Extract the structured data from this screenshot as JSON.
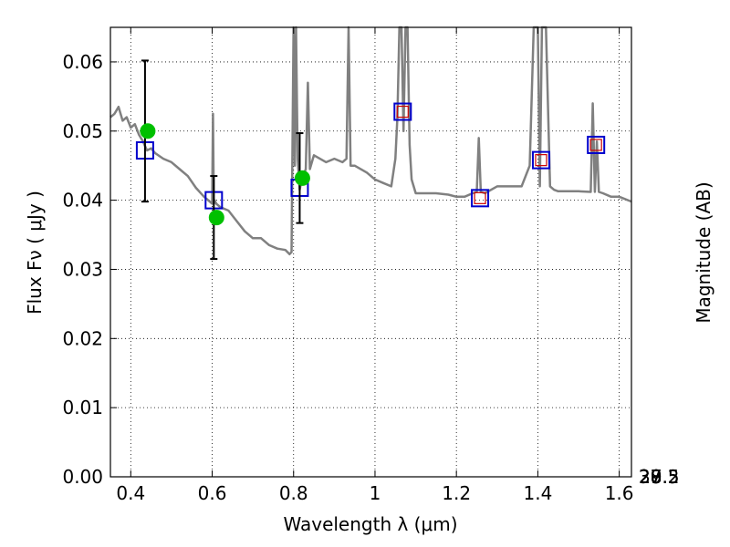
{
  "chart_data": {
    "type": "scatter",
    "title": "",
    "xlabel": "Wavelength  λ (μm)",
    "ylabel": "Flux  Fν  ( μJy )",
    "ylabel_right": "Magnitude (AB)",
    "xlim": [
      0.35,
      1.63
    ],
    "ylim": [
      0,
      0.065
    ],
    "grid": true,
    "x_ticks": [
      {
        "value": 0.4,
        "label": "0.4"
      },
      {
        "value": 0.6,
        "label": "0.6"
      },
      {
        "value": 0.8,
        "label": "0.8"
      },
      {
        "value": 1.0,
        "label": "1"
      },
      {
        "value": 1.2,
        "label": "1.2"
      },
      {
        "value": 1.4,
        "label": "1.4"
      },
      {
        "value": 1.6,
        "label": "1.6"
      }
    ],
    "y_ticks": [
      {
        "value": 0.0,
        "label": "0.00"
      },
      {
        "value": 0.01,
        "label": "0.01"
      },
      {
        "value": 0.02,
        "label": "0.02"
      },
      {
        "value": 0.03,
        "label": "0.03"
      },
      {
        "value": 0.04,
        "label": "0.04"
      },
      {
        "value": 0.05,
        "label": "0.05"
      },
      {
        "value": 0.06,
        "label": "0.06"
      }
    ],
    "right_ticks": [
      {
        "value": 27,
        "label": "27"
      },
      {
        "value": 27.2,
        "label": "27.2"
      },
      {
        "value": 27.5,
        "label": "27.5"
      },
      {
        "value": 28,
        "label": "28"
      },
      {
        "value": 28.5,
        "label": "28.5"
      },
      {
        "value": 29,
        "label": "29"
      },
      {
        "value": 30,
        "label": "30"
      }
    ],
    "series": [
      {
        "marker": "line",
        "color": "#808080",
        "x": [
          0.35,
          0.36,
          0.37,
          0.38,
          0.39,
          0.4,
          0.41,
          0.42,
          0.43,
          0.44,
          0.45,
          0.46,
          0.48,
          0.5,
          0.52,
          0.54,
          0.56,
          0.58,
          0.59,
          0.6,
          0.602,
          0.604,
          0.606,
          0.61,
          0.62,
          0.64,
          0.66,
          0.68,
          0.7,
          0.72,
          0.74,
          0.76,
          0.78,
          0.79,
          0.795,
          0.8,
          0.803,
          0.806,
          0.81,
          0.815,
          0.82,
          0.83,
          0.835,
          0.84,
          0.85,
          0.88,
          0.9,
          0.92,
          0.93,
          0.935,
          0.94,
          0.95,
          0.98,
          1.0,
          1.02,
          1.04,
          1.05,
          1.055,
          1.06,
          1.065,
          1.07,
          1.075,
          1.08,
          1.085,
          1.09,
          1.1,
          1.12,
          1.15,
          1.18,
          1.2,
          1.22,
          1.24,
          1.25,
          1.255,
          1.26,
          1.27,
          1.3,
          1.33,
          1.36,
          1.38,
          1.39,
          1.4,
          1.405,
          1.41,
          1.42,
          1.43,
          1.44,
          1.45,
          1.46,
          1.5,
          1.53,
          1.535,
          1.54,
          1.545,
          1.55,
          1.56,
          1.58,
          1.6,
          1.63
        ],
        "y": [
          0.052,
          0.0525,
          0.0535,
          0.0515,
          0.052,
          0.0505,
          0.051,
          0.0495,
          0.0485,
          0.0472,
          0.0475,
          0.0468,
          0.046,
          0.0455,
          0.0445,
          0.0435,
          0.0418,
          0.0405,
          0.04,
          0.0395,
          0.0525,
          0.0395,
          0.04,
          0.0395,
          0.039,
          0.0385,
          0.037,
          0.0355,
          0.0345,
          0.0345,
          0.0335,
          0.033,
          0.0328,
          0.0322,
          0.0325,
          0.065,
          0.045,
          0.065,
          0.046,
          0.0415,
          0.043,
          0.0445,
          0.057,
          0.0445,
          0.0465,
          0.0455,
          0.046,
          0.0455,
          0.046,
          0.065,
          0.045,
          0.045,
          0.044,
          0.043,
          0.0425,
          0.042,
          0.046,
          0.052,
          0.065,
          0.065,
          0.05,
          0.065,
          0.065,
          0.048,
          0.043,
          0.041,
          0.041,
          0.041,
          0.0408,
          0.0405,
          0.0405,
          0.041,
          0.0412,
          0.049,
          0.0412,
          0.041,
          0.042,
          0.042,
          0.042,
          0.045,
          0.065,
          0.065,
          0.042,
          0.065,
          0.065,
          0.042,
          0.0415,
          0.0413,
          0.0413,
          0.0413,
          0.0412,
          0.054,
          0.0412,
          0.0485,
          0.0412,
          0.041,
          0.0405,
          0.0405,
          0.0398
        ]
      },
      {
        "marker": "open-square-blue",
        "color": "#0000cc",
        "x": [
          0.435,
          0.604,
          0.815,
          1.068,
          1.258,
          1.408,
          1.543
        ],
        "y": [
          0.0472,
          0.04,
          0.0418,
          0.0528,
          0.0403,
          0.0458,
          0.048
        ]
      },
      {
        "marker": "open-square-red",
        "color": "#cc0000",
        "x": [
          1.068,
          1.258,
          1.408,
          1.543
        ],
        "y": [
          0.0528,
          0.0403,
          0.0458,
          0.048
        ]
      },
      {
        "marker": "filled-circle",
        "color": "#00c000",
        "x": [
          0.435,
          0.604,
          0.815
        ],
        "y": [
          0.05,
          0.0375,
          0.0432
        ],
        "yerr_low": [
          0.0398,
          0.0315,
          0.0367
        ],
        "yerr_high": [
          0.0602,
          0.0435,
          0.0497
        ]
      }
    ]
  }
}
